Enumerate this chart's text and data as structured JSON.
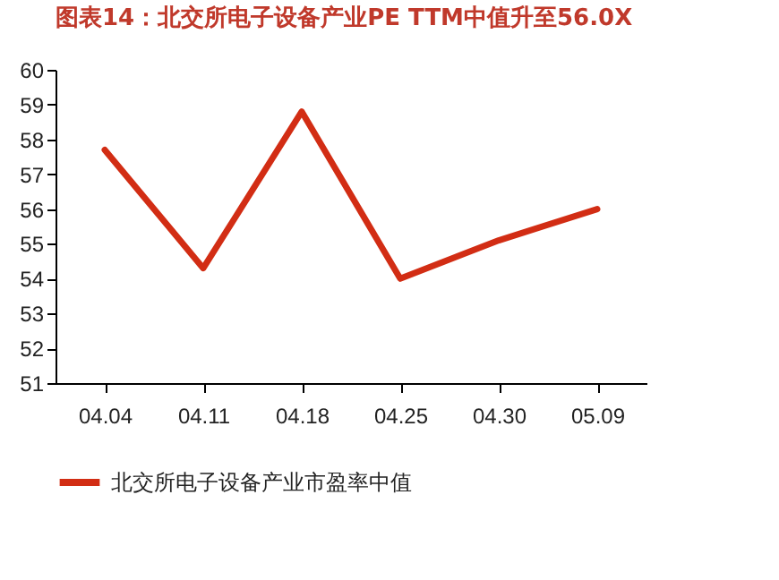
{
  "chart_data": {
    "type": "line",
    "title": "图表14：北交所电子设备产业PE TTM中值升至56.0X",
    "categories": [
      "04.04",
      "04.11",
      "04.18",
      "04.25",
      "04.30",
      "05.09"
    ],
    "series": [
      {
        "name": "北交所电子设备产业市盈率中值",
        "color": "#d22d14",
        "values": [
          57.7,
          54.3,
          58.8,
          54.0,
          55.1,
          56.0
        ]
      }
    ],
    "ylim": [
      51,
      60
    ],
    "yticks": [
      51,
      52,
      53,
      54,
      55,
      56,
      57,
      58,
      59,
      60
    ],
    "grid": false,
    "legend": "bottom",
    "marker": "none"
  }
}
